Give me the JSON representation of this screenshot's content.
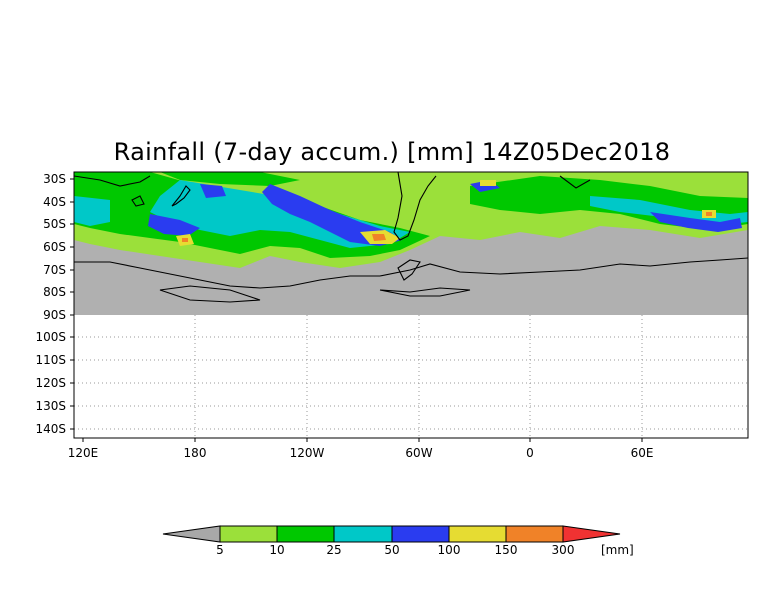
{
  "title": "Rainfall (7-day accum.) [mm] 14Z05Dec2018",
  "lat_labels": [
    "30S",
    "40S",
    "50S",
    "60S",
    "70S",
    "80S",
    "90S",
    "100S",
    "110S",
    "120S",
    "130S",
    "140S"
  ],
  "lon_labels": [
    "120E",
    "180",
    "120W",
    "60W",
    "0",
    "60E"
  ],
  "colorbar": {
    "levels": [
      "5",
      "10",
      "25",
      "50",
      "100",
      "150",
      "300"
    ],
    "unit": "[mm]",
    "colors": {
      "below": "#a8a8a8",
      "c1": "#9be03a",
      "c2": "#00c800",
      "c3": "#00c8c8",
      "c4": "#2a3cf0",
      "c5": "#e6dc32",
      "c6": "#f08228",
      "above": "#f03232"
    }
  },
  "map_colors": {
    "no_rain": "#b0b0b0",
    "light": "#9be03a",
    "green": "#00c800",
    "cyan": "#00c8c8",
    "blue": "#2a3cf0",
    "yellow": "#e6dc32",
    "orange": "#f08228",
    "coast": "#000000",
    "grid": "#999999"
  }
}
